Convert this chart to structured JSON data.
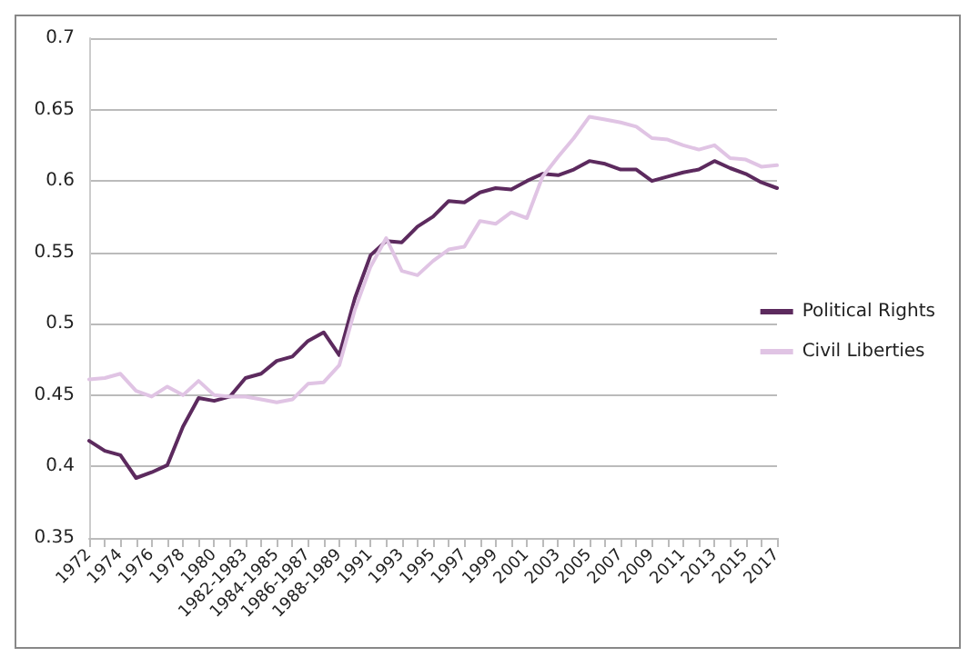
{
  "chart_data": {
    "type": "line",
    "categories": [
      "1972",
      null,
      "1974",
      null,
      "1976",
      null,
      "1978",
      null,
      "1980",
      null,
      "1982-1983",
      null,
      "1984-1985",
      null,
      "1986-1987",
      null,
      "1988-1989",
      null,
      "1991",
      null,
      "1993",
      null,
      "1995",
      null,
      "1997",
      null,
      "1999",
      null,
      "2001",
      null,
      "2003",
      null,
      "2005",
      null,
      "2007",
      null,
      "2009",
      null,
      "2011",
      null,
      "2013",
      null,
      "2015",
      null,
      "2017"
    ],
    "series": [
      {
        "name": "Political Rights",
        "color": "#5c2a5e",
        "values": [
          0.418,
          0.411,
          0.408,
          0.392,
          0.396,
          0.401,
          0.428,
          0.448,
          0.446,
          0.449,
          0.462,
          0.465,
          0.474,
          0.477,
          0.488,
          0.494,
          0.478,
          0.518,
          0.548,
          0.558,
          0.557,
          0.568,
          0.575,
          0.586,
          0.585,
          0.592,
          0.595,
          0.594,
          0.6,
          0.605,
          0.604,
          0.608,
          0.614,
          0.612,
          0.608,
          0.608,
          0.6,
          0.603,
          0.606,
          0.608,
          0.614,
          0.609,
          0.605,
          0.599,
          0.595
        ]
      },
      {
        "name": "Civil Liberties",
        "color": "#e0c4e4",
        "values": [
          0.461,
          0.462,
          0.465,
          0.453,
          0.449,
          0.456,
          0.45,
          0.46,
          0.45,
          0.449,
          0.449,
          0.447,
          0.445,
          0.447,
          0.458,
          0.459,
          0.471,
          0.51,
          0.54,
          0.56,
          0.537,
          0.534,
          0.544,
          0.552,
          0.554,
          0.572,
          0.57,
          0.578,
          0.574,
          0.603,
          0.617,
          0.63,
          0.645,
          0.643,
          0.641,
          0.638,
          0.63,
          0.629,
          0.625,
          0.622,
          0.625,
          0.616,
          0.615,
          0.61,
          0.611
        ]
      }
    ],
    "ylim": [
      0.35,
      0.7
    ],
    "yticks": [
      0.35,
      0.4,
      0.45,
      0.5,
      0.55,
      0.6,
      0.65,
      0.7
    ],
    "grid": "y",
    "legend": "right",
    "marker": "none",
    "line_style": "solid"
  }
}
